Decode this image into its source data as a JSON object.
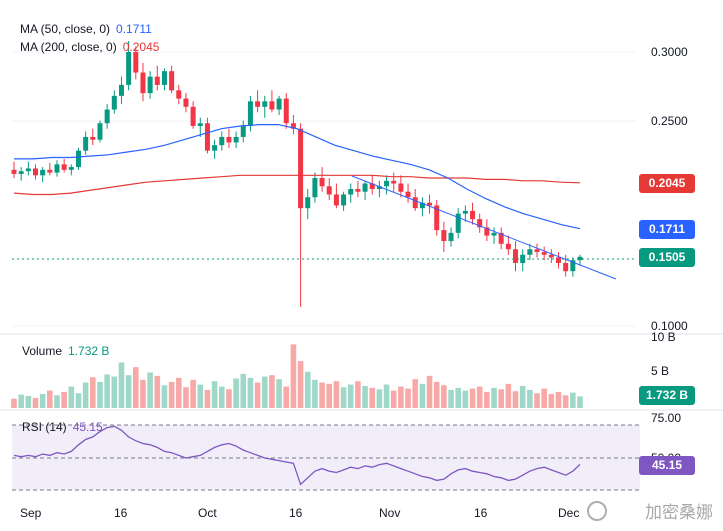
{
  "main_pane": {
    "ma50": {
      "label": "MA (50, close, 0)",
      "value": "0.1711",
      "color": "#2962ff"
    },
    "ma200": {
      "label": "MA (200, close, 0)",
      "value": "0.2045",
      "color": "#e53935"
    },
    "price_axis": [
      "0.3000",
      "0.2500",
      "0.1000"
    ],
    "tags": {
      "ma200": {
        "text": "0.2045",
        "color": "#e53935"
      },
      "ma50": {
        "text": "0.1711",
        "color": "#2962ff"
      },
      "last": {
        "text": "0.1505",
        "color": "#089981"
      }
    }
  },
  "volume_pane": {
    "label": "Volume",
    "value": "1.732 B",
    "axis": [
      "10 B",
      "5 B"
    ],
    "tag": {
      "text": "1.732 B",
      "color": "#089981"
    }
  },
  "rsi_pane": {
    "label": "RSI (14)",
    "value": "45.15",
    "axis": [
      "75.00",
      "50.00"
    ],
    "tag": {
      "text": "45.15",
      "color": "#7e57c2"
    }
  },
  "time_axis": [
    "Sep",
    "16",
    "Oct",
    "16",
    "Nov",
    "16",
    "Dec"
  ],
  "watermark": "加密桑娜",
  "chart_data": {
    "type": "candlestick",
    "colors": {
      "up": "#089981",
      "down": "#f23645"
    },
    "ylim": [
      0.1,
      0.32
    ],
    "candles": [
      [
        0.214,
        0.22,
        0.208,
        0.211
      ],
      [
        0.211,
        0.216,
        0.206,
        0.213
      ],
      [
        0.213,
        0.22,
        0.21,
        0.215
      ],
      [
        0.215,
        0.218,
        0.207,
        0.21
      ],
      [
        0.21,
        0.216,
        0.205,
        0.214
      ],
      [
        0.214,
        0.219,
        0.21,
        0.212
      ],
      [
        0.212,
        0.221,
        0.209,
        0.218
      ],
      [
        0.218,
        0.222,
        0.212,
        0.214
      ],
      [
        0.214,
        0.218,
        0.21,
        0.216
      ],
      [
        0.216,
        0.23,
        0.214,
        0.228
      ],
      [
        0.228,
        0.242,
        0.225,
        0.238
      ],
      [
        0.238,
        0.244,
        0.232,
        0.236
      ],
      [
        0.236,
        0.25,
        0.234,
        0.248
      ],
      [
        0.248,
        0.262,
        0.244,
        0.258
      ],
      [
        0.258,
        0.272,
        0.255,
        0.268
      ],
      [
        0.268,
        0.282,
        0.262,
        0.276
      ],
      [
        0.276,
        0.308,
        0.272,
        0.3
      ],
      [
        0.3,
        0.304,
        0.28,
        0.285
      ],
      [
        0.285,
        0.292,
        0.264,
        0.27
      ],
      [
        0.27,
        0.286,
        0.266,
        0.282
      ],
      [
        0.282,
        0.29,
        0.272,
        0.276
      ],
      [
        0.276,
        0.288,
        0.272,
        0.286
      ],
      [
        0.286,
        0.29,
        0.27,
        0.272
      ],
      [
        0.272,
        0.276,
        0.262,
        0.266
      ],
      [
        0.266,
        0.27,
        0.256,
        0.26
      ],
      [
        0.26,
        0.264,
        0.244,
        0.246
      ],
      [
        0.246,
        0.252,
        0.238,
        0.248
      ],
      [
        0.248,
        0.252,
        0.226,
        0.228
      ],
      [
        0.228,
        0.236,
        0.222,
        0.232
      ],
      [
        0.232,
        0.242,
        0.228,
        0.238
      ],
      [
        0.238,
        0.244,
        0.23,
        0.234
      ],
      [
        0.234,
        0.242,
        0.23,
        0.238
      ],
      [
        0.238,
        0.25,
        0.234,
        0.246
      ],
      [
        0.246,
        0.268,
        0.242,
        0.264
      ],
      [
        0.264,
        0.272,
        0.256,
        0.26
      ],
      [
        0.26,
        0.268,
        0.252,
        0.264
      ],
      [
        0.264,
        0.272,
        0.256,
        0.258
      ],
      [
        0.258,
        0.268,
        0.254,
        0.266
      ],
      [
        0.266,
        0.27,
        0.244,
        0.248
      ],
      [
        0.248,
        0.254,
        0.24,
        0.244
      ],
      [
        0.244,
        0.248,
        0.114,
        0.186
      ],
      [
        0.186,
        0.2,
        0.178,
        0.194
      ],
      [
        0.194,
        0.212,
        0.19,
        0.208
      ],
      [
        0.208,
        0.216,
        0.198,
        0.202
      ],
      [
        0.202,
        0.208,
        0.192,
        0.196
      ],
      [
        0.196,
        0.204,
        0.186,
        0.188
      ],
      [
        0.188,
        0.198,
        0.184,
        0.196
      ],
      [
        0.196,
        0.204,
        0.19,
        0.2
      ],
      [
        0.2,
        0.206,
        0.194,
        0.198
      ],
      [
        0.198,
        0.206,
        0.192,
        0.204
      ],
      [
        0.204,
        0.21,
        0.196,
        0.2
      ],
      [
        0.2,
        0.206,
        0.194,
        0.202
      ],
      [
        0.202,
        0.21,
        0.196,
        0.206
      ],
      [
        0.206,
        0.212,
        0.198,
        0.204
      ],
      [
        0.204,
        0.21,
        0.194,
        0.198
      ],
      [
        0.198,
        0.204,
        0.19,
        0.194
      ],
      [
        0.194,
        0.2,
        0.184,
        0.186
      ],
      [
        0.186,
        0.194,
        0.18,
        0.19
      ],
      [
        0.19,
        0.196,
        0.182,
        0.188
      ],
      [
        0.188,
        0.192,
        0.166,
        0.17
      ],
      [
        0.17,
        0.176,
        0.154,
        0.162
      ],
      [
        0.162,
        0.172,
        0.158,
        0.168
      ],
      [
        0.168,
        0.186,
        0.164,
        0.182
      ],
      [
        0.182,
        0.188,
        0.176,
        0.184
      ],
      [
        0.184,
        0.19,
        0.174,
        0.178
      ],
      [
        0.178,
        0.182,
        0.168,
        0.172
      ],
      [
        0.172,
        0.178,
        0.162,
        0.166
      ],
      [
        0.166,
        0.172,
        0.16,
        0.168
      ],
      [
        0.168,
        0.172,
        0.156,
        0.16
      ],
      [
        0.16,
        0.166,
        0.152,
        0.156
      ],
      [
        0.156,
        0.162,
        0.14,
        0.146
      ],
      [
        0.146,
        0.156,
        0.14,
        0.152
      ],
      [
        0.152,
        0.16,
        0.148,
        0.156
      ],
      [
        0.156,
        0.16,
        0.15,
        0.154
      ],
      [
        0.154,
        0.158,
        0.148,
        0.152
      ],
      [
        0.152,
        0.156,
        0.146,
        0.15
      ],
      [
        0.15,
        0.154,
        0.142,
        0.146
      ],
      [
        0.146,
        0.152,
        0.136,
        0.14
      ],
      [
        0.14,
        0.15,
        0.136,
        0.148
      ],
      [
        0.148,
        0.152,
        0.144,
        0.1505
      ]
    ],
    "ma50": [
      0.222,
      0.222,
      0.223,
      0.223,
      0.224,
      0.225,
      0.227,
      0.229,
      0.232,
      0.236,
      0.24,
      0.244,
      0.246,
      0.247,
      0.247,
      0.244,
      0.238,
      0.232,
      0.228,
      0.224,
      0.221,
      0.218,
      0.214,
      0.208,
      0.2,
      0.193,
      0.187,
      0.182,
      0.178,
      0.174,
      0.171
    ],
    "ma200": [
      0.197,
      0.196,
      0.196,
      0.197,
      0.199,
      0.201,
      0.203,
      0.205,
      0.206,
      0.207,
      0.208,
      0.209,
      0.21,
      0.21,
      0.21,
      0.21,
      0.21,
      0.21,
      0.21,
      0.21,
      0.209,
      0.209,
      0.208,
      0.208,
      0.208,
      0.207,
      0.207,
      0.206,
      0.206,
      0.205,
      0.2045
    ],
    "volume": [
      1.4,
      2.0,
      1.8,
      1.5,
      2.1,
      2.6,
      1.9,
      2.4,
      3.2,
      2.2,
      3.8,
      4.6,
      3.9,
      5.0,
      4.7,
      6.8,
      4.9,
      6.1,
      4.2,
      5.3,
      4.8,
      3.4,
      3.9,
      4.5,
      3.1,
      4.2,
      3.5,
      2.7,
      4.0,
      3.2,
      2.8,
      4.4,
      5.1,
      4.5,
      3.8,
      4.7,
      4.9,
      4.3,
      3.2,
      9.5,
      7.0,
      5.4,
      4.2,
      3.8,
      3.6,
      4.0,
      3.1,
      3.5,
      4.0,
      3.3,
      3.0,
      2.8,
      3.5,
      2.6,
      3.2,
      2.9,
      4.3,
      3.6,
      4.8,
      3.9,
      3.4,
      2.7,
      3.0,
      2.6,
      2.9,
      3.2,
      2.4,
      3.0,
      2.8,
      3.6,
      2.5,
      3.3,
      2.7,
      2.2,
      2.9,
      2.1,
      2.4,
      1.9,
      2.3,
      1.732
    ],
    "rsi": [
      52,
      51,
      52,
      51,
      53,
      52,
      54,
      53,
      55,
      60,
      64,
      66,
      70,
      73,
      74,
      71,
      66,
      63,
      61,
      60,
      58,
      55,
      54,
      52,
      50,
      51,
      52,
      55,
      58,
      60,
      61,
      59,
      56,
      54,
      52,
      50,
      49,
      48,
      47,
      46,
      30,
      35,
      40,
      42,
      40,
      39,
      41,
      43,
      42,
      44,
      43,
      45,
      46,
      44,
      42,
      40,
      38,
      36,
      35,
      33,
      34,
      38,
      41,
      42,
      40,
      39,
      38,
      36,
      35,
      33,
      34,
      37,
      40,
      42,
      43,
      41,
      39,
      37,
      40,
      45.15
    ],
    "trendline": [
      [
        0.21,
        0.151
      ]
    ]
  }
}
